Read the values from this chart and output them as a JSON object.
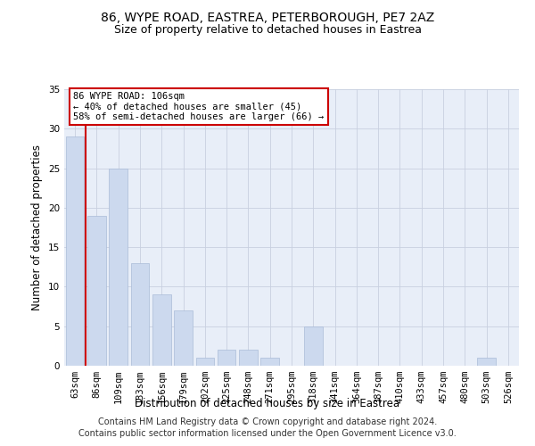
{
  "title1": "86, WYPE ROAD, EASTREA, PETERBOROUGH, PE7 2AZ",
  "title2": "Size of property relative to detached houses in Eastrea",
  "xlabel": "Distribution of detached houses by size in Eastrea",
  "ylabel": "Number of detached properties",
  "bar_labels": [
    "63sqm",
    "86sqm",
    "109sqm",
    "133sqm",
    "156sqm",
    "179sqm",
    "202sqm",
    "225sqm",
    "248sqm",
    "271sqm",
    "295sqm",
    "318sqm",
    "341sqm",
    "364sqm",
    "387sqm",
    "410sqm",
    "433sqm",
    "457sqm",
    "480sqm",
    "503sqm",
    "526sqm"
  ],
  "bar_values": [
    29,
    19,
    25,
    13,
    9,
    7,
    1,
    2,
    2,
    1,
    0,
    5,
    0,
    0,
    0,
    0,
    0,
    0,
    0,
    1,
    0
  ],
  "bar_color": "#ccd9ee",
  "bar_edge_color": "#aabbd8",
  "bar_width": 0.85,
  "red_line_x": 0.5,
  "red_line_color": "#cc0000",
  "ylim": [
    0,
    35
  ],
  "yticks": [
    0,
    5,
    10,
    15,
    20,
    25,
    30,
    35
  ],
  "annotation_text": "86 WYPE ROAD: 106sqm\n← 40% of detached houses are smaller (45)\n58% of semi-detached houses are larger (66) →",
  "annotation_box_color": "#ffffff",
  "annotation_box_edge": "#cc0000",
  "footer1": "Contains HM Land Registry data © Crown copyright and database right 2024.",
  "footer2": "Contains public sector information licensed under the Open Government Licence v3.0.",
  "bg_color": "#e8eef8",
  "grid_color": "#c8d0e0",
  "title_fontsize": 10,
  "subtitle_fontsize": 9,
  "tick_fontsize": 7.5,
  "footer_fontsize": 7
}
